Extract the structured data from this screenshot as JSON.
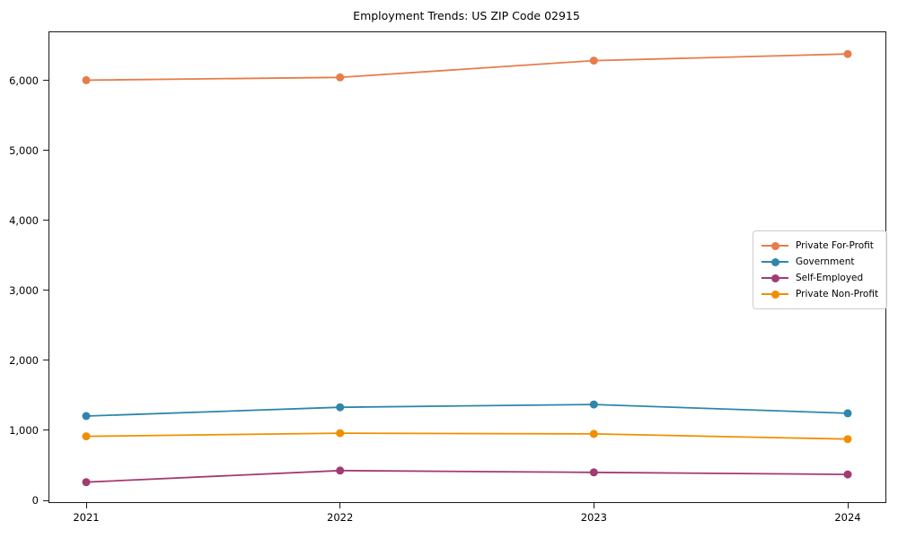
{
  "figure": {
    "title": "Employment Trends: US ZIP Code 02915",
    "background_color": "#ffffff",
    "spine_color": "#1a1a1a"
  },
  "chart_data": {
    "type": "line",
    "title": "Employment Trends: US ZIP Code 02915",
    "xlabel": "",
    "ylabel": "",
    "categories": [
      "2021",
      "2022",
      "2023",
      "2024"
    ],
    "x_tick_labels": [
      "2021",
      "2022",
      "2023",
      "2024"
    ],
    "y_ticks": [
      {
        "value": 0,
        "label": "0"
      },
      {
        "value": 1000,
        "label": "1,000"
      },
      {
        "value": 2000,
        "label": "2,000"
      },
      {
        "value": 3000,
        "label": "3,000"
      },
      {
        "value": 4000,
        "label": "4,000"
      },
      {
        "value": 5000,
        "label": "5,000"
      },
      {
        "value": 6000,
        "label": "6,000"
      }
    ],
    "ylim": [
      0,
      6690
    ],
    "grid": false,
    "legend_position": "center-right",
    "marker": "circle",
    "series": [
      {
        "name": "Private For-Profit",
        "color": "#E67D4B",
        "values": [
          6005,
          6045,
          6285,
          6380
        ]
      },
      {
        "name": "Government",
        "color": "#2E86AB",
        "values": [
          1205,
          1330,
          1370,
          1245
        ]
      },
      {
        "name": "Self-Employed",
        "color": "#A23B72",
        "values": [
          260,
          425,
          400,
          370
        ]
      },
      {
        "name": "Private Non-Profit",
        "color": "#F18F01",
        "values": [
          915,
          960,
          950,
          875
        ]
      }
    ]
  }
}
